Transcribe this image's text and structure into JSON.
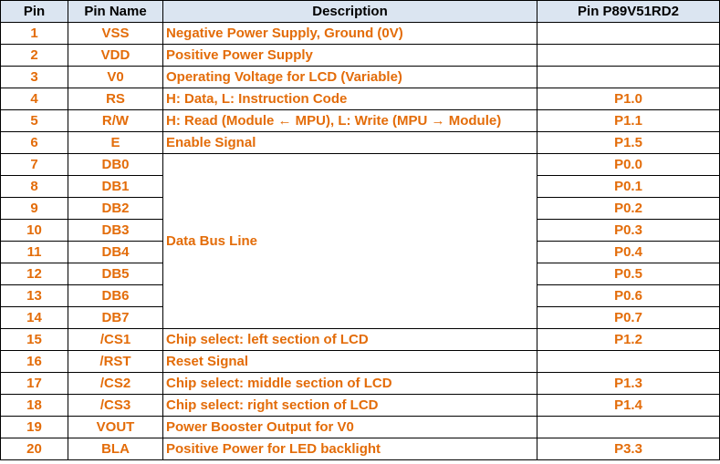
{
  "table": {
    "headers": [
      "Pin",
      "Pin Name",
      "Description",
      "Pin P89V51RD2"
    ],
    "rows": [
      {
        "pin": "1",
        "name": "VSS",
        "desc": "Negative Power Supply, Ground (0V)",
        "port": ""
      },
      {
        "pin": "2",
        "name": "VDD",
        "desc": "Positive Power Supply",
        "port": ""
      },
      {
        "pin": "3",
        "name": "V0",
        "desc": "Operating Voltage for LCD (Variable)",
        "port": ""
      },
      {
        "pin": "4",
        "name": "RS",
        "desc": "H: Data, L: Instruction Code",
        "port": "P1.0"
      },
      {
        "pin": "5",
        "name": "R/W",
        "desc": "H: Read (Module ← MPU), L: Write (MPU → Module)",
        "port": "P1.1"
      },
      {
        "pin": "6",
        "name": "E",
        "desc": "Enable Signal",
        "port": "P1.5"
      },
      {
        "pin": "7",
        "name": "DB0",
        "desc": "Data Bus Line",
        "port": "P0.0"
      },
      {
        "pin": "8",
        "name": "DB1",
        "port": "P0.1"
      },
      {
        "pin": "9",
        "name": "DB2",
        "port": "P0.2"
      },
      {
        "pin": "10",
        "name": "DB3",
        "port": "P0.3"
      },
      {
        "pin": "11",
        "name": "DB4",
        "port": "P0.4"
      },
      {
        "pin": "12",
        "name": "DB5",
        "port": "P0.5"
      },
      {
        "pin": "13",
        "name": "DB6",
        "port": "P0.6"
      },
      {
        "pin": "14",
        "name": "DB7",
        "port": "P0.7"
      },
      {
        "pin": "15",
        "name": "/CS1",
        "desc": "Chip select: left section of LCD",
        "port": "P1.2"
      },
      {
        "pin": "16",
        "name": "/RST",
        "desc": "Reset Signal",
        "port": ""
      },
      {
        "pin": "17",
        "name": "/CS2",
        "desc": "Chip select: middle section of LCD",
        "port": "P1.3"
      },
      {
        "pin": "18",
        "name": "/CS3",
        "desc": "Chip select: right section of LCD",
        "port": "P1.4"
      },
      {
        "pin": "19",
        "name": "VOUT",
        "desc": "Power Booster Output for V0",
        "port": ""
      },
      {
        "pin": "20",
        "name": "BLA",
        "desc": "Positive Power for LED backlight",
        "port": "P3.3"
      }
    ]
  },
  "colors": {
    "header_bg": "#dbe5f1",
    "text_accent": "#e36c09",
    "border": "#000000"
  }
}
